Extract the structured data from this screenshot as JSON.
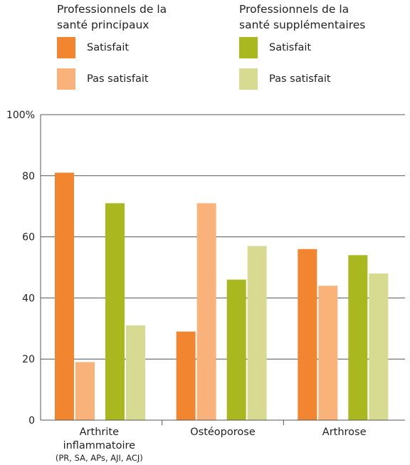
{
  "legend": {
    "primary": {
      "title_line1": "Professionnels de la",
      "title_line2": "santé principaux",
      "satisfied": "Satisfait",
      "not_satisfied": "Pas satisfait"
    },
    "secondary": {
      "title_line1": "Professionnels de la",
      "title_line2": "santé supplémentaires",
      "satisfied": "Satisfait",
      "not_satisfied": "Pas satisfait"
    }
  },
  "colors": {
    "primary_satisfied": "#F28530",
    "primary_not_satisfied": "#F9B27A",
    "secondary_satisfied": "#A9B81F",
    "secondary_not_satisfied": "#D7DB92",
    "grid": "#555555"
  },
  "chart_data": {
    "type": "bar",
    "categories": [
      "Arthrite inflammatoire",
      "Ostéoporose",
      "Arthrose"
    ],
    "category_sublabels": [
      "(PR, SA, APs, AJI, ACJ)",
      "",
      ""
    ],
    "series": [
      {
        "name": "Professionnels de la santé principaux – Satisfait",
        "values": [
          81,
          29,
          56
        ]
      },
      {
        "name": "Professionnels de la santé principaux – Pas satisfait",
        "values": [
          19,
          71,
          44
        ]
      },
      {
        "name": "Professionnels de la santé supplémentaires – Satisfait",
        "values": [
          71,
          46,
          54
        ]
      },
      {
        "name": "Professionnels de la santé supplémentaires – Pas satisfait",
        "values": [
          31,
          57,
          48
        ]
      }
    ],
    "ylim": [
      0,
      100
    ],
    "yticks": [
      {
        "value": 0,
        "label": "0"
      },
      {
        "value": 20,
        "label": "20"
      },
      {
        "value": 40,
        "label": "40"
      },
      {
        "value": 60,
        "label": "60"
      },
      {
        "value": 80,
        "label": "80"
      },
      {
        "value": 100,
        "label": "100%"
      }
    ],
    "grid": true,
    "legend_position": "top"
  }
}
